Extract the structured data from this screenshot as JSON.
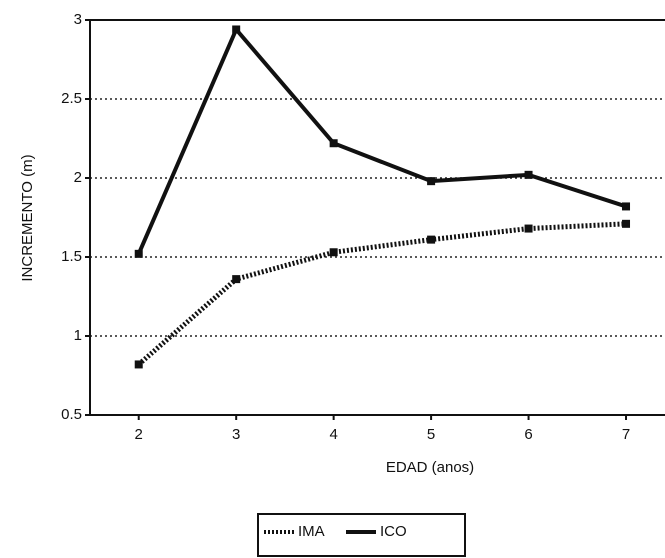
{
  "chart_data": {
    "type": "line",
    "x_label": "EDAD (anos)",
    "y_label": "INCREMENTO (m)",
    "x": [
      2,
      3,
      4,
      5,
      6,
      7
    ],
    "series": [
      {
        "name": "IMA",
        "color": "#111111",
        "dashed": true,
        "values": [
          0.82,
          1.36,
          1.53,
          1.61,
          1.68,
          1.71
        ]
      },
      {
        "name": "ICO",
        "color": "#111111",
        "dashed": false,
        "values": [
          1.52,
          2.94,
          2.22,
          1.98,
          2.02,
          1.82
        ]
      }
    ],
    "xlim": [
      1.5,
      7.4
    ],
    "xticks": [
      2,
      3,
      4,
      5,
      6,
      7
    ],
    "ylim": [
      0.5,
      3
    ],
    "yticks": [
      0.5,
      1,
      1.5,
      2,
      2.5,
      3
    ],
    "grid": true,
    "legend": "bottom"
  }
}
